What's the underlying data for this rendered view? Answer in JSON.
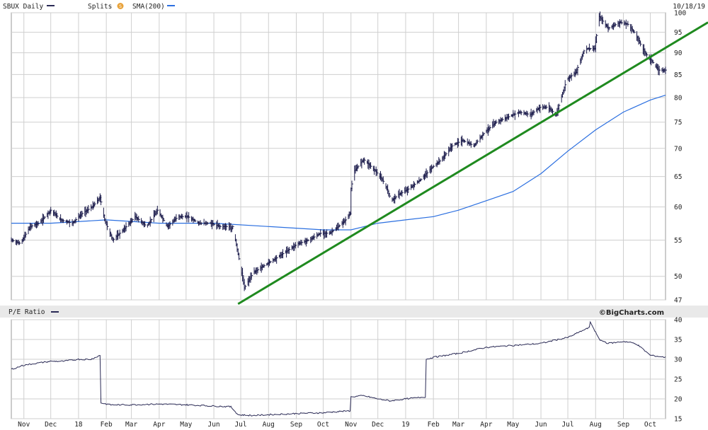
{
  "header": {
    "symbol_label": "SBUX Daily",
    "splits_label": "Splits",
    "splits_badge": "S",
    "sma_label": "SMA(200)",
    "date": "10/18/19"
  },
  "lower_panel": {
    "title": "P/E Ratio",
    "watermark": "©BigCharts.com"
  },
  "colors": {
    "price_bars": "#1a1a4a",
    "sma": "#2b6fe0",
    "trendline": "#1f8a1f",
    "pe_line": "#2a2a55",
    "grid": "#cfcfcf",
    "splits_badge": "#e8a23a"
  },
  "chart_data": [
    {
      "type": "line",
      "name": "SBUX price",
      "scale": "log",
      "ylim": [
        47,
        100
      ],
      "y_ticks": [
        47,
        50,
        55,
        60,
        65,
        70,
        75,
        80,
        85,
        90,
        95,
        100
      ],
      "x_ticks": [
        "Nov",
        "Dec",
        "18",
        "Feb",
        "Mar",
        "Apr",
        "May",
        "Jun",
        "Jul",
        "Aug",
        "Sep",
        "Oct",
        "Nov",
        "Dec",
        "19",
        "Feb",
        "Mar",
        "Apr",
        "May",
        "Jun",
        "Jul",
        "Aug",
        "Sep",
        "Oct"
      ],
      "x_ticks_at": [
        "2017-11-01",
        "2017-12-01",
        "2018-01-01",
        "2018-02-01",
        "2018-03-01",
        "2018-04-01",
        "2018-05-01",
        "2018-06-01",
        "2018-07-01",
        "2018-08-01",
        "2018-09-01",
        "2018-10-01",
        "2018-11-01",
        "2018-12-01",
        "2019-01-01",
        "2019-02-01",
        "2019-03-01",
        "2019-04-01",
        "2019-05-01",
        "2019-06-01",
        "2019-07-01",
        "2019-08-01",
        "2019-09-01",
        "2019-10-01"
      ],
      "x_range": [
        "2017-10-18",
        "2019-10-18"
      ],
      "price": {
        "x": [
          "2017-10-18",
          "2017-10-28",
          "2017-11-08",
          "2017-11-18",
          "2017-12-01",
          "2017-12-12",
          "2017-12-25",
          "2018-01-05",
          "2018-01-16",
          "2018-01-25",
          "2018-01-30",
          "2018-02-08",
          "2018-02-20",
          "2018-03-05",
          "2018-03-18",
          "2018-03-30",
          "2018-04-10",
          "2018-04-22",
          "2018-05-03",
          "2018-05-15",
          "2018-05-28",
          "2018-06-08",
          "2018-06-18",
          "2018-06-20",
          "2018-06-22",
          "2018-06-28",
          "2018-07-05",
          "2018-07-15",
          "2018-07-28",
          "2018-08-10",
          "2018-08-22",
          "2018-09-03",
          "2018-09-15",
          "2018-09-28",
          "2018-10-08",
          "2018-10-18",
          "2018-10-26",
          "2018-10-31",
          "2018-11-01",
          "2018-11-05",
          "2018-11-15",
          "2018-11-28",
          "2018-12-08",
          "2018-12-16",
          "2018-12-24",
          "2019-01-05",
          "2019-01-18",
          "2019-01-30",
          "2019-02-10",
          "2019-02-22",
          "2019-03-05",
          "2019-03-18",
          "2019-03-30",
          "2019-04-12",
          "2019-04-25",
          "2019-05-08",
          "2019-05-20",
          "2019-05-31",
          "2019-06-08",
          "2019-06-18",
          "2019-06-30",
          "2019-07-10",
          "2019-07-20",
          "2019-07-25",
          "2019-07-31",
          "2019-08-05",
          "2019-08-15",
          "2019-08-28",
          "2019-09-06",
          "2019-09-13",
          "2019-09-25",
          "2019-10-03",
          "2019-10-10",
          "2019-10-18"
        ],
        "values": [
          55,
          54.5,
          57,
          57.5,
          59.5,
          58,
          57.5,
          59,
          60,
          61.5,
          58,
          55,
          56.5,
          58.5,
          57,
          59.5,
          57,
          58.5,
          58.5,
          57.5,
          57.5,
          57,
          57,
          56.5,
          57,
          53,
          48.5,
          50.5,
          51.5,
          52.5,
          53.5,
          54.5,
          55,
          56,
          56,
          57,
          58,
          59,
          63,
          66,
          68,
          66,
          64,
          61,
          62,
          63,
          64.5,
          66.5,
          68,
          70.5,
          71.5,
          70.5,
          73,
          75,
          76,
          77,
          76.5,
          78,
          78,
          76.5,
          84,
          85.5,
          91,
          91,
          91,
          99,
          96,
          97.5,
          97,
          95,
          90,
          88,
          86,
          86
        ]
      },
      "sma": {
        "x": [
          "2017-10-18",
          "2017-12-01",
          "2018-02-01",
          "2018-04-01",
          "2018-06-01",
          "2018-08-01",
          "2018-10-01",
          "2018-11-01",
          "2018-12-01",
          "2019-01-01",
          "2019-02-01",
          "2019-03-01",
          "2019-04-01",
          "2019-05-01",
          "2019-06-01",
          "2019-07-01",
          "2019-08-01",
          "2019-09-01",
          "2019-10-01",
          "2019-10-18"
        ],
        "values": [
          57.5,
          57.5,
          58,
          57.5,
          57.5,
          57,
          56.5,
          56.5,
          57.5,
          58,
          58.5,
          59.5,
          61,
          62.5,
          65.5,
          69.5,
          73.5,
          77,
          79.5,
          80.5
        ]
      },
      "trendline": {
        "x": [
          "2018-06-28",
          "2019-11-01"
        ],
        "values": [
          46.5,
          93
        ]
      }
    },
    {
      "type": "line",
      "name": "P/E Ratio",
      "ylim": [
        15,
        40
      ],
      "y_ticks": [
        15,
        20,
        25,
        30,
        35,
        40
      ],
      "x": [
        "2017-10-18",
        "2017-11-01",
        "2017-11-15",
        "2017-12-01",
        "2017-12-15",
        "2018-01-01",
        "2018-01-15",
        "2018-01-25",
        "2018-01-26",
        "2018-02-05",
        "2018-03-01",
        "2018-04-01",
        "2018-05-01",
        "2018-06-01",
        "2018-06-20",
        "2018-06-28",
        "2018-07-15",
        "2018-08-01",
        "2018-09-01",
        "2018-10-01",
        "2018-10-31",
        "2018-11-01",
        "2018-11-15",
        "2018-12-01",
        "2018-12-15",
        "2019-01-01",
        "2019-01-23",
        "2019-01-24",
        "2019-02-01",
        "2019-03-01",
        "2019-04-01",
        "2019-05-01",
        "2019-06-01",
        "2019-06-20",
        "2019-07-01",
        "2019-07-15",
        "2019-07-25",
        "2019-07-26",
        "2019-08-05",
        "2019-08-15",
        "2019-09-01",
        "2019-09-15",
        "2019-10-01",
        "2019-10-18"
      ],
      "values": [
        27.5,
        28.5,
        29,
        29.5,
        29.5,
        30,
        30,
        31,
        19,
        18.5,
        18.5,
        18.7,
        18.5,
        18.2,
        18,
        16,
        15.8,
        16,
        16.3,
        16.5,
        17,
        20.5,
        20.8,
        20,
        19.5,
        20,
        20.5,
        30,
        30.5,
        31.5,
        33,
        33.5,
        34,
        35,
        35.5,
        37,
        38,
        39.5,
        35,
        34,
        34.5,
        34,
        31,
        30.5
      ]
    }
  ]
}
